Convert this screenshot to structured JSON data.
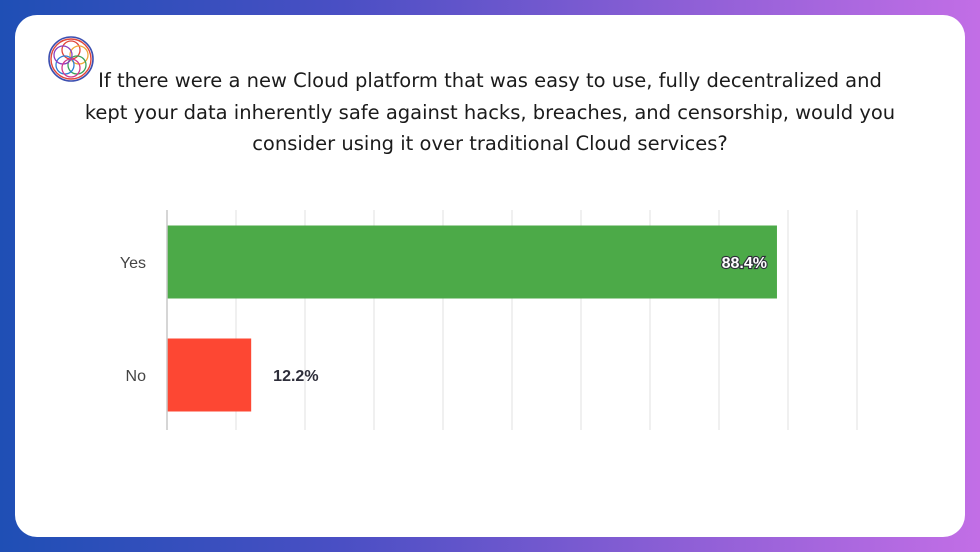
{
  "question": "If there were a new Cloud platform that was easy to use, fully decentralized and kept your data inherently safe against hacks, breaches, and censorship, would you consider using it over traditional Cloud services?",
  "logo_icon": "circular-mesh-logo-icon",
  "colors": {
    "yes_bar": "#4caa48",
    "no_bar": "#fd4733",
    "inside_label": "#ffffff",
    "outside_label": "#2e2e3a"
  },
  "chart_data": {
    "type": "bar",
    "orientation": "horizontal",
    "categories": [
      "Yes",
      "No"
    ],
    "values": [
      88.4,
      12.2
    ],
    "value_labels": [
      "88.4%",
      "12.2%"
    ],
    "xlim": [
      0,
      100
    ],
    "grid": true,
    "gridline_count": 10,
    "title": "",
    "xlabel": "",
    "ylabel": ""
  }
}
